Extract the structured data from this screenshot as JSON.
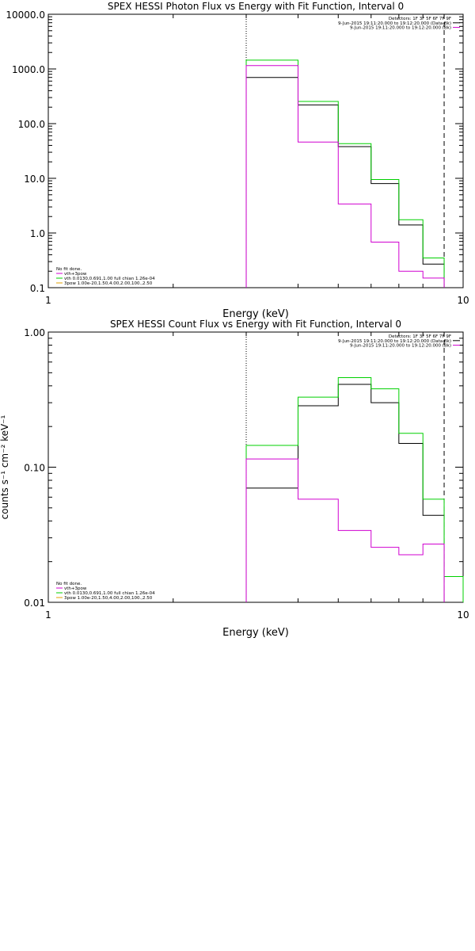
{
  "chart_data": [
    {
      "type": "line",
      "title": "SPEX HESSI Photon Flux vs Energy with Fit Function, Interval 0",
      "xlabel": "Energy (keV)",
      "ylabel": "",
      "xscale": "log",
      "yscale": "log",
      "xlim": [
        1,
        10
      ],
      "ylim": [
        0.1,
        10000
      ],
      "x_ticks": [
        {
          "value": 1,
          "label": "1"
        },
        {
          "value": 10,
          "label": "10"
        }
      ],
      "y_ticks": [
        {
          "value": 0.1,
          "label": "0.1"
        },
        {
          "value": 1,
          "label": "1.0"
        },
        {
          "value": 10,
          "label": "10.0"
        },
        {
          "value": 100,
          "label": "100.0"
        },
        {
          "value": 1000,
          "label": "1000.0"
        },
        {
          "value": 10000,
          "label": "10000.0"
        }
      ],
      "markers": {
        "dotted_x": 3.0,
        "dashed_x": 9.0
      },
      "bin_edges": [
        3.0,
        4.0,
        5.0,
        6.0,
        7.0,
        8.0,
        9.0,
        10.0
      ],
      "series": [
        {
          "color": "#000000",
          "values": [
            700,
            220,
            38,
            8,
            1.4,
            0.27,
            null
          ]
        },
        {
          "color": "#00d000",
          "values": [
            1450,
            255,
            43,
            9.5,
            1.75,
            0.35,
            null
          ]
        },
        {
          "color": "#d000d0",
          "values": [
            1150,
            46,
            3.4,
            0.68,
            0.2,
            0.15,
            null
          ]
        }
      ],
      "legend_top": {
        "placement": "top-right",
        "entries": [
          {
            "text": "Detectors: 1F 3F 5F 6F 7F 9F",
            "color": null
          },
          {
            "text": "9-Jun-2015 19:11:20.000 to 19:12:20.000 (Data-Bk)",
            "color": "#000000"
          },
          {
            "text": "9-Jun-2015 19:11:20.000 to 19:12:20.000 (Bk)",
            "color": "#d000d0"
          }
        ]
      },
      "legend_bottom": {
        "placement": "bottom-left",
        "entries": [
          {
            "text": "No fit done.",
            "color": null
          },
          {
            "text": "vth+3pow",
            "color": "#d000d0"
          },
          {
            "text": "vth 0.0130,0.691,1.00 full chian 1.26e-04",
            "color": "#00d000"
          },
          {
            "text": "3pow 1.00e-20,1.50,4.00,2.00,100.,2.50",
            "color": "#e0a000"
          }
        ]
      }
    },
    {
      "type": "line",
      "title": "SPEX HESSI Count Flux vs Energy with Fit Function, Interval 0",
      "xlabel": "Energy (keV)",
      "ylabel": "counts s⁻¹ cm⁻² keV⁻¹",
      "xscale": "log",
      "yscale": "log",
      "xlim": [
        1,
        10
      ],
      "ylim": [
        0.01,
        1.0
      ],
      "x_ticks": [
        {
          "value": 1,
          "label": "1"
        },
        {
          "value": 10,
          "label": "10"
        }
      ],
      "y_ticks": [
        {
          "value": 0.01,
          "label": "0.01"
        },
        {
          "value": 0.1,
          "label": "0.10"
        },
        {
          "value": 1.0,
          "label": "1.00"
        }
      ],
      "markers": {
        "dotted_x": 3.0,
        "dashed_x": 9.0
      },
      "bin_edges": [
        3.0,
        4.0,
        5.0,
        6.0,
        7.0,
        8.0,
        9.0,
        10.0
      ],
      "series": [
        {
          "color": "#000000",
          "values": [
            0.07,
            0.285,
            0.41,
            0.3,
            0.15,
            0.044,
            null
          ]
        },
        {
          "color": "#00d000",
          "values": [
            0.145,
            0.33,
            0.46,
            0.38,
            0.178,
            0.058,
            0.0155
          ]
        },
        {
          "color": "#d000d0",
          "values": [
            0.115,
            0.058,
            0.034,
            0.0255,
            0.0225,
            0.027,
            null
          ]
        }
      ],
      "legend_top": {
        "placement": "top-right",
        "entries": [
          {
            "text": "Detectors: 1F 3F 5F 6F 7F 9F",
            "color": null
          },
          {
            "text": "9-Jun-2015 19:11:20.000 to 19:12:20.000 (Data-Bk)",
            "color": "#000000"
          },
          {
            "text": "9-Jun-2015 19:11:20.000 to 19:12:20.000 (Bk)",
            "color": "#d000d0"
          }
        ]
      },
      "legend_bottom": {
        "placement": "bottom-left",
        "entries": [
          {
            "text": "No fit done.",
            "color": null
          },
          {
            "text": "vth+3pow",
            "color": "#d000d0"
          },
          {
            "text": "vth 0.0130,0.691,1.00 full chian 1.26e-04",
            "color": "#00d000"
          },
          {
            "text": "3pow 1.00e-20,1.50,4.00,2.00,100.,2.50",
            "color": "#e0a000"
          }
        ]
      }
    }
  ]
}
